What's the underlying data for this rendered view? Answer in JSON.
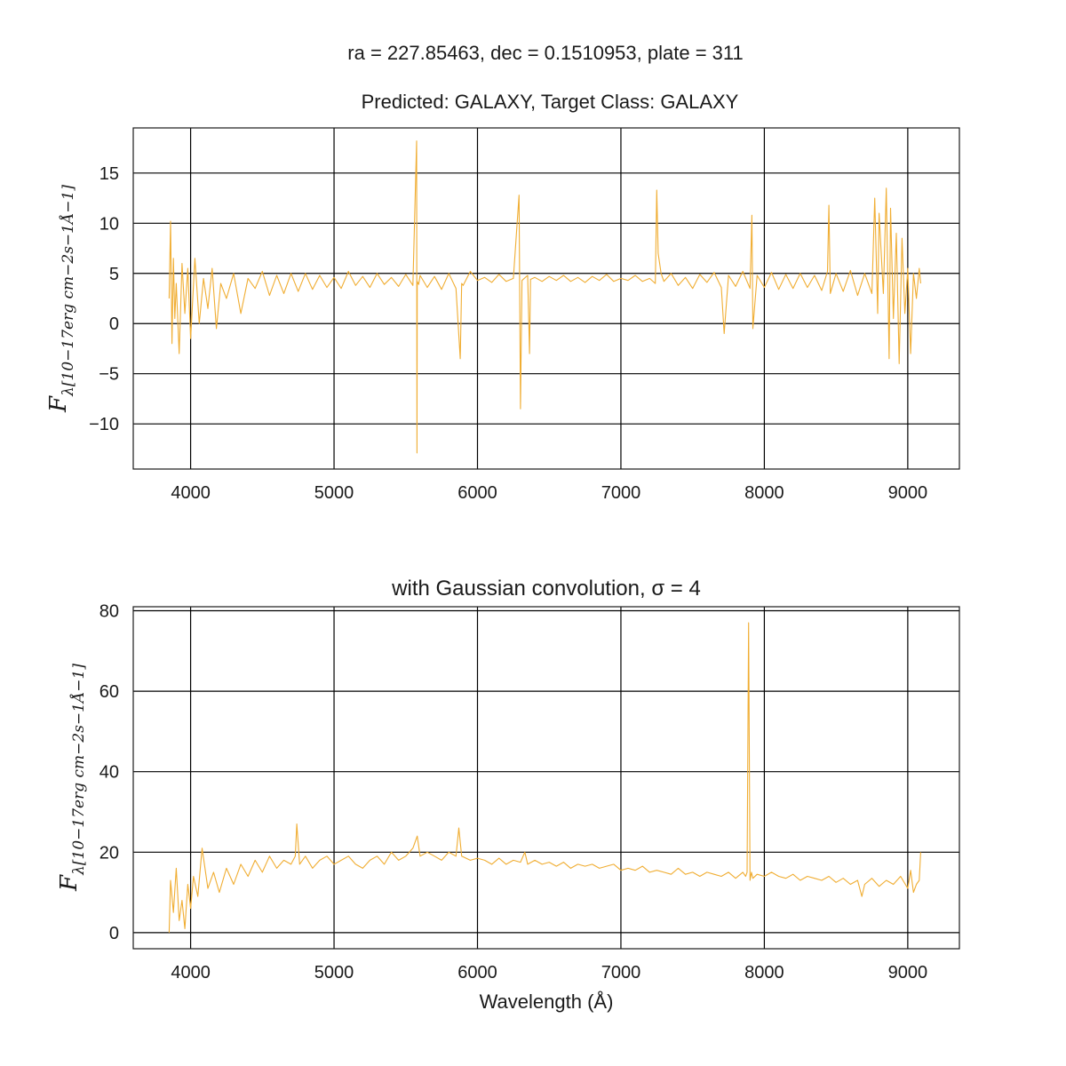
{
  "figure": {
    "suptitle": "ra = 227.85463, dec = 0.1510953, plate = 311",
    "line_color": "#f0ad32",
    "grid_color": "#000000"
  },
  "chart_data": [
    {
      "type": "line",
      "title": "Predicted: GALAXY, Target Class: GALAXY",
      "xlabel": "",
      "ylabel": "Fλ[10⁻¹⁷ erg cm⁻² s⁻¹ Å⁻¹]",
      "ylabel_main": "F",
      "ylabel_sub": "λ[10−17erg cm−2s−1Å−1]",
      "xlim": [
        3600,
        9360
      ],
      "ylim": [
        -14.5,
        19.5
      ],
      "xticks": [
        4000,
        5000,
        6000,
        7000,
        8000,
        9000
      ],
      "yticks": [
        -10,
        -5,
        0,
        5,
        10,
        15
      ],
      "ytick_labels": [
        "−10",
        "−5",
        "0",
        "5",
        "10",
        "15"
      ],
      "grid": true,
      "series": [
        {
          "color": "#f0ad32",
          "x": [
            3850,
            3860,
            3870,
            3880,
            3890,
            3900,
            3920,
            3940,
            3960,
            3980,
            4000,
            4030,
            4060,
            4090,
            4120,
            4150,
            4180,
            4210,
            4250,
            4300,
            4350,
            4400,
            4450,
            4500,
            4550,
            4600,
            4650,
            4700,
            4750,
            4800,
            4850,
            4900,
            4950,
            5000,
            5050,
            5100,
            5150,
            5200,
            5250,
            5300,
            5350,
            5400,
            5450,
            5500,
            5550,
            5576,
            5578,
            5580,
            5590,
            5600,
            5650,
            5700,
            5750,
            5800,
            5850,
            5880,
            5890,
            5900,
            5950,
            6000,
            6050,
            6100,
            6150,
            6200,
            6250,
            6290,
            6300,
            6310,
            6350,
            6363,
            6370,
            6400,
            6450,
            6500,
            6550,
            6600,
            6650,
            6700,
            6750,
            6800,
            6850,
            6900,
            6950,
            7000,
            7050,
            7100,
            7150,
            7200,
            7240,
            7250,
            7260,
            7280,
            7300,
            7350,
            7400,
            7450,
            7500,
            7550,
            7600,
            7650,
            7700,
            7720,
            7750,
            7800,
            7850,
            7900,
            7913,
            7920,
            7950,
            8000,
            8050,
            8100,
            8150,
            8200,
            8250,
            8300,
            8350,
            8400,
            8440,
            8450,
            8460,
            8500,
            8550,
            8600,
            8650,
            8700,
            8750,
            8770,
            8790,
            8800,
            8830,
            8850,
            8870,
            8880,
            8900,
            8920,
            8940,
            8960,
            8980,
            9000,
            9020,
            9040,
            9060,
            9080,
            9090
          ],
          "y": [
            2.5,
            10.2,
            -2.0,
            6.5,
            0.5,
            4.0,
            -3.0,
            6.0,
            1.0,
            5.5,
            -1.5,
            6.5,
            0.0,
            4.5,
            1.5,
            5.5,
            -0.5,
            4.0,
            2.5,
            5.0,
            1.0,
            4.5,
            3.5,
            5.2,
            2.8,
            4.8,
            3.0,
            5.0,
            3.2,
            5.0,
            3.4,
            4.8,
            3.6,
            4.6,
            3.5,
            5.2,
            3.8,
            4.7,
            3.6,
            5.0,
            3.9,
            4.6,
            3.7,
            4.9,
            3.8,
            18.2,
            -12.9,
            4.2,
            3.9,
            4.8,
            3.6,
            4.7,
            3.4,
            5.0,
            3.5,
            -3.5,
            4.0,
            3.8,
            5.2,
            4.3,
            4.6,
            4.1,
            4.9,
            4.2,
            4.5,
            12.8,
            -8.5,
            4.3,
            4.8,
            -3.0,
            4.4,
            4.6,
            4.2,
            4.7,
            4.3,
            4.8,
            4.2,
            4.6,
            4.1,
            4.7,
            4.3,
            4.9,
            4.2,
            4.5,
            4.3,
            4.8,
            4.2,
            4.5,
            4.0,
            13.3,
            7.0,
            5.0,
            4.2,
            5.0,
            3.8,
            4.6,
            3.5,
            4.9,
            4.1,
            5.1,
            3.6,
            -1.0,
            4.8,
            3.7,
            5.2,
            3.5,
            10.8,
            -0.5,
            4.8,
            3.6,
            5.1,
            3.4,
            4.9,
            3.5,
            5.0,
            3.6,
            4.8,
            3.3,
            5.2,
            11.8,
            3.0,
            5.0,
            3.2,
            5.3,
            2.8,
            5.0,
            3.0,
            12.5,
            1.0,
            11.0,
            3.0,
            13.5,
            -3.5,
            11.5,
            0.5,
            9.0,
            -4.0,
            8.5,
            1.0,
            5.5,
            -3.0,
            5.0,
            2.5,
            5.5,
            4.0
          ]
        }
      ]
    },
    {
      "type": "line",
      "title": "with Gaussian convolution, σ = 4",
      "xlabel": "Wavelength (Å)",
      "ylabel": "Fλ[10⁻¹⁷ erg cm⁻² s⁻¹ Å⁻¹]",
      "ylabel_main": "F",
      "ylabel_sub": "λ[10−17erg cm−2s−1Å−1]",
      "xlim": [
        3600,
        9360
      ],
      "ylim": [
        -4,
        81
      ],
      "xticks": [
        4000,
        5000,
        6000,
        7000,
        8000,
        9000
      ],
      "yticks": [
        0,
        20,
        40,
        60,
        80
      ],
      "ytick_labels": [
        "0",
        "20",
        "40",
        "60",
        "80"
      ],
      "grid": true,
      "series": [
        {
          "color": "#f0ad32",
          "x": [
            3850,
            3860,
            3880,
            3900,
            3920,
            3940,
            3960,
            3980,
            4000,
            4020,
            4050,
            4080,
            4120,
            4160,
            4200,
            4250,
            4300,
            4350,
            4400,
            4450,
            4500,
            4550,
            4600,
            4650,
            4700,
            4730,
            4740,
            4760,
            4800,
            4850,
            4900,
            4950,
            5000,
            5050,
            5100,
            5150,
            5200,
            5250,
            5300,
            5350,
            5400,
            5450,
            5500,
            5550,
            5580,
            5600,
            5650,
            5700,
            5750,
            5800,
            5850,
            5870,
            5890,
            5950,
            6000,
            6050,
            6100,
            6150,
            6200,
            6250,
            6300,
            6330,
            6350,
            6400,
            6450,
            6500,
            6550,
            6600,
            6650,
            6700,
            6750,
            6800,
            6850,
            6900,
            6950,
            7000,
            7050,
            7100,
            7150,
            7200,
            7250,
            7300,
            7350,
            7400,
            7450,
            7500,
            7550,
            7600,
            7650,
            7700,
            7750,
            7800,
            7850,
            7870,
            7880,
            7890,
            7900,
            7910,
            7920,
            7950,
            8000,
            8050,
            8100,
            8150,
            8200,
            8250,
            8300,
            8350,
            8400,
            8450,
            8500,
            8550,
            8600,
            8650,
            8680,
            8700,
            8750,
            8800,
            8850,
            8900,
            8950,
            9000,
            9020,
            9040,
            9060,
            9080,
            9090
          ],
          "y": [
            0,
            13,
            5,
            16,
            3,
            8,
            1,
            12,
            6,
            14,
            9,
            21,
            11,
            15,
            10,
            16,
            12,
            17,
            14,
            18,
            15,
            19,
            16,
            18,
            17,
            19,
            27,
            17,
            19,
            16,
            18,
            19,
            17,
            18,
            19,
            17,
            16,
            18,
            19,
            17,
            20,
            18,
            19,
            21,
            24,
            19,
            20,
            19,
            18,
            20,
            19,
            26,
            19,
            18,
            18.5,
            18,
            17,
            18.5,
            17,
            18,
            17.5,
            20,
            17,
            18,
            17,
            17.5,
            16.5,
            17.5,
            16,
            17,
            16.5,
            17,
            16,
            16.5,
            17,
            15.5,
            16,
            15.5,
            16.5,
            15,
            15.5,
            15,
            14.5,
            16,
            14.5,
            15,
            14,
            15,
            14.5,
            14,
            15,
            13.5,
            15,
            14,
            15,
            77,
            13,
            15,
            13.5,
            14.5,
            14,
            15,
            14,
            13.5,
            14.5,
            13,
            14,
            13.5,
            13,
            14,
            12.5,
            13.5,
            12,
            13,
            9,
            12,
            13.5,
            11.5,
            13,
            12,
            14,
            11,
            15.5,
            10,
            12,
            13,
            20
          ]
        }
      ]
    }
  ]
}
